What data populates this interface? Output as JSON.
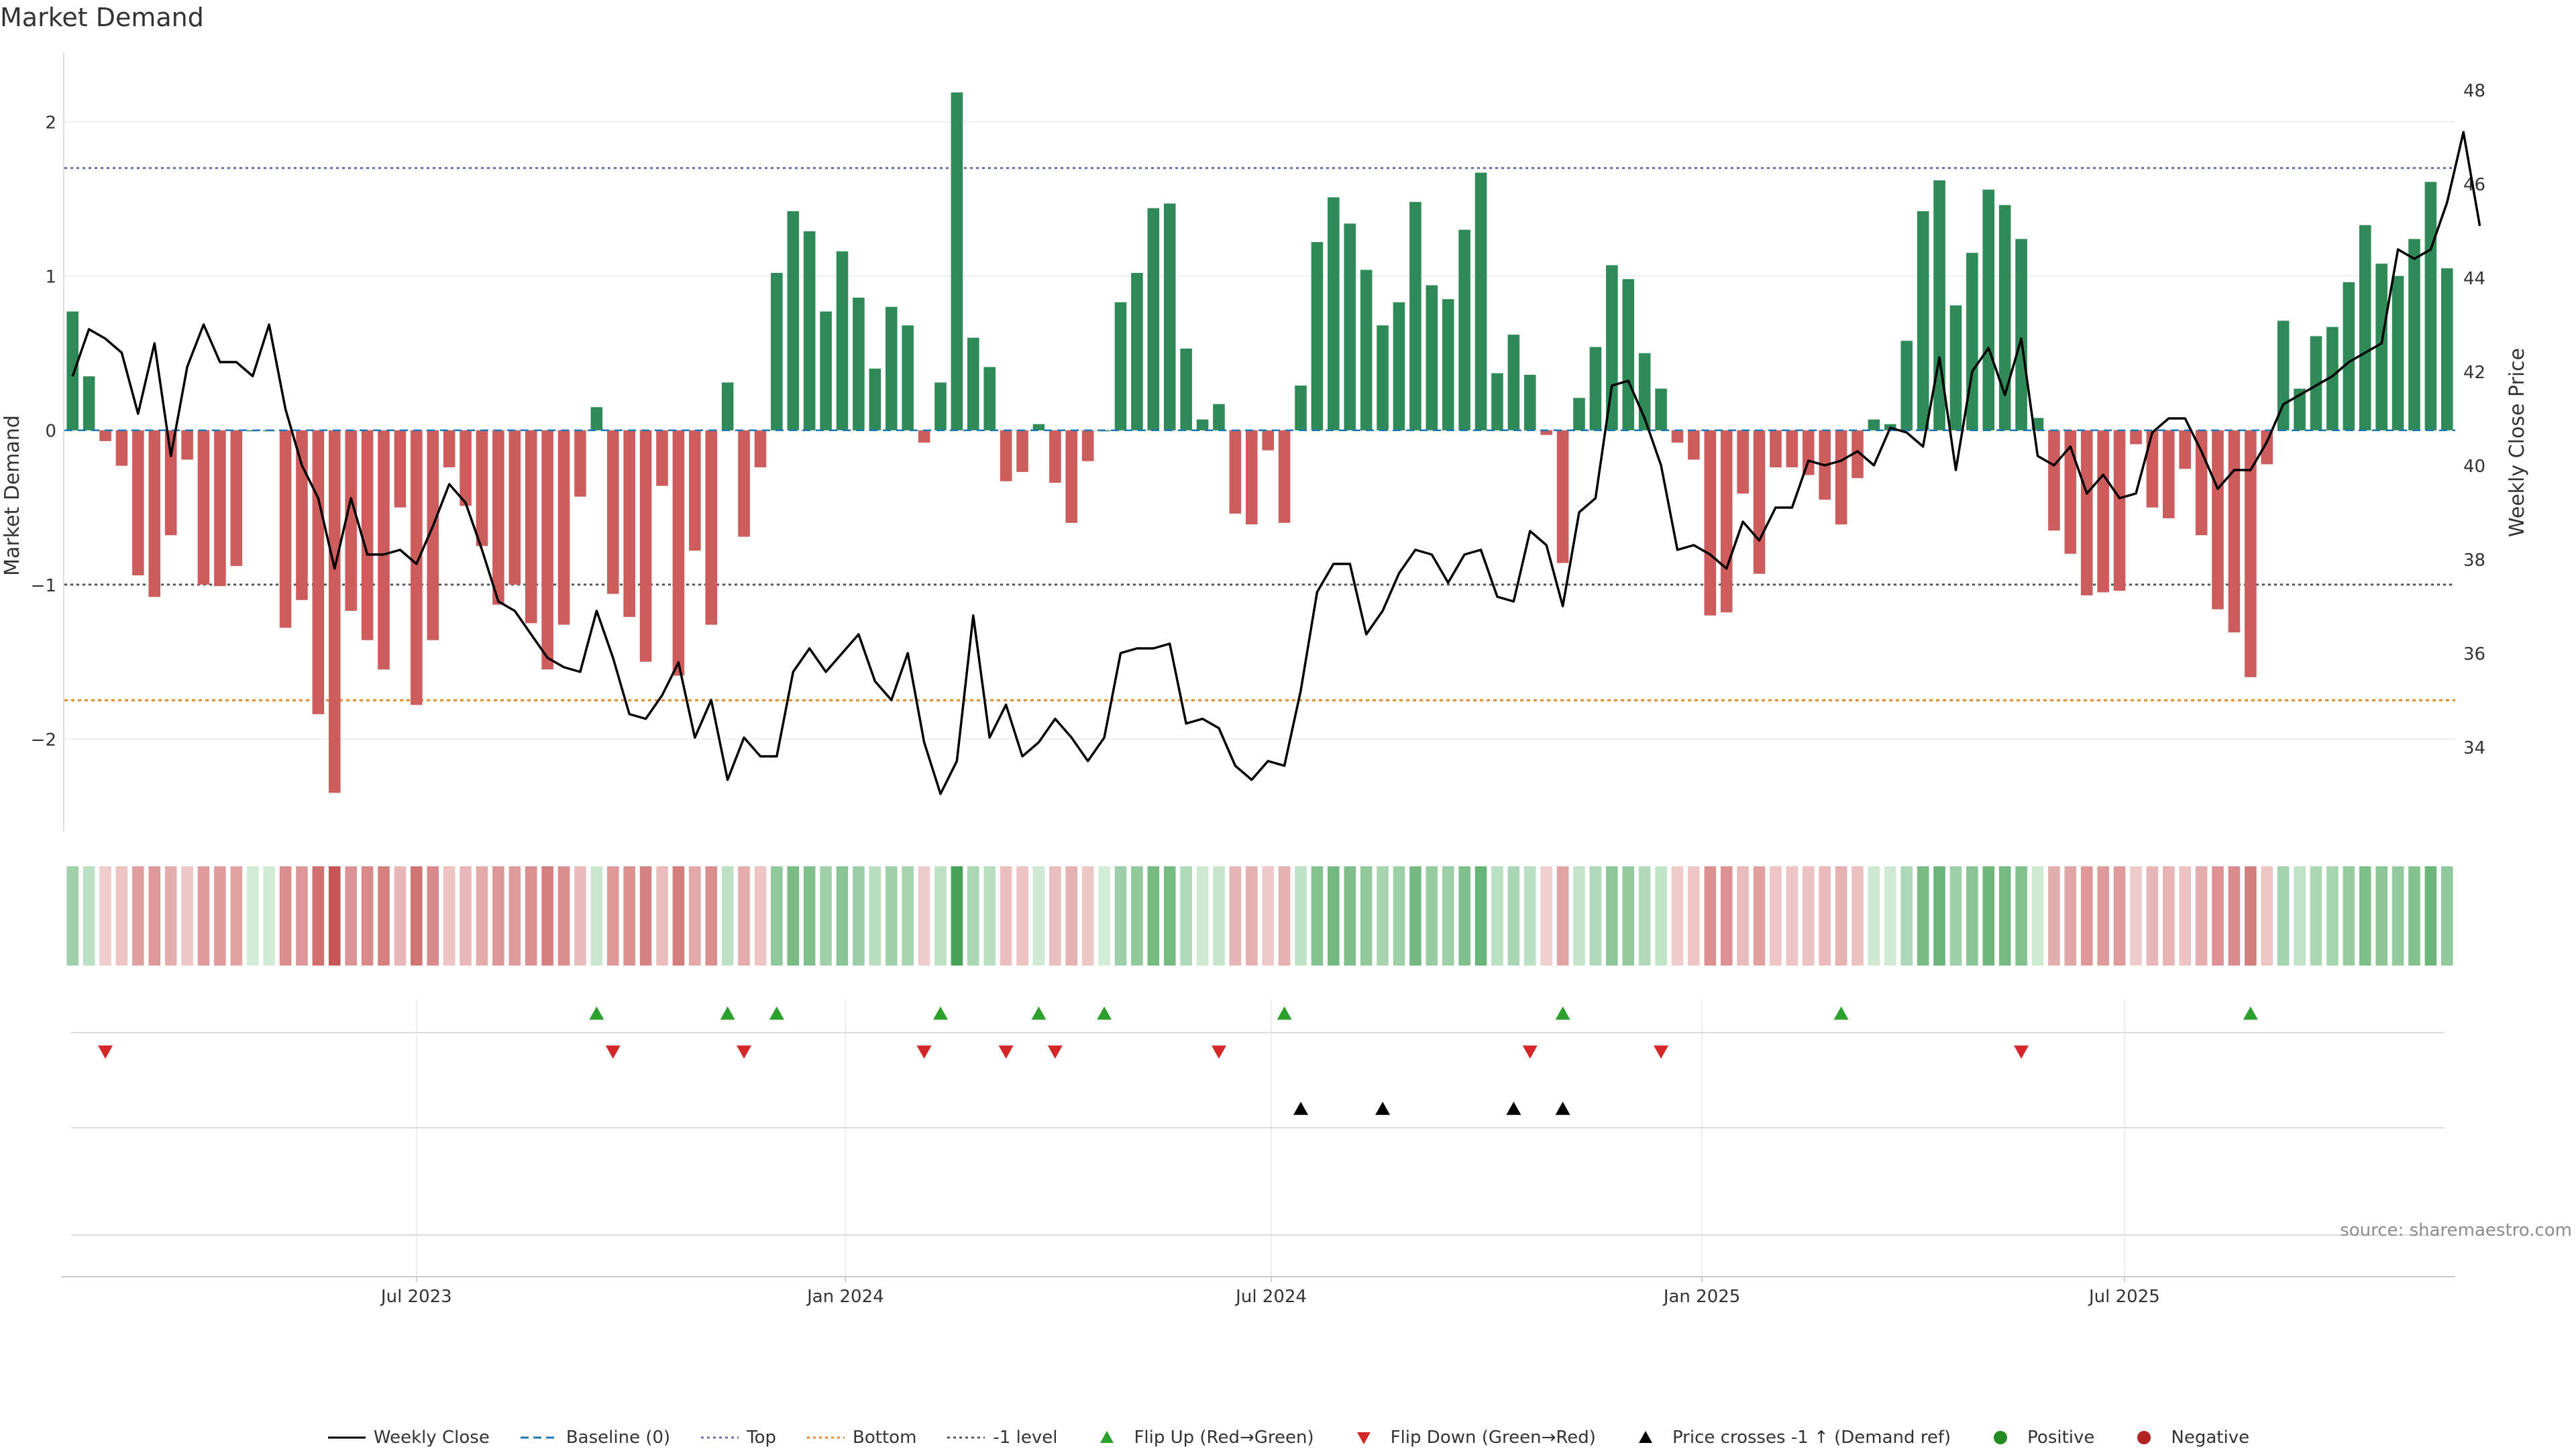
{
  "title": "Market Demand",
  "source": "source: sharemaestro.com",
  "colors": {
    "positive_bar": "#2e8b57",
    "negative_bar": "#cd5c5c",
    "price_line": "#000000",
    "top_line": "#6f6fb0",
    "bottom_line": "#e08a2a",
    "minus_one_line": "#555555",
    "baseline": "#1f77b4",
    "flip_up": "#2ca02c",
    "flip_down": "#d62728",
    "cross_marker": "#000000",
    "positive_dot": "#228b22",
    "negative_dot": "#b22222"
  },
  "legend": [
    {
      "label": "Weekly Close",
      "icon": "line-solid-icon",
      "color": "#000000"
    },
    {
      "label": "Baseline (0)",
      "icon": "line-dashed-icon",
      "color": "#1f77b4"
    },
    {
      "label": "Top",
      "icon": "line-dotted-icon",
      "color": "#6f6fb0"
    },
    {
      "label": "Bottom",
      "icon": "line-dotted-icon",
      "color": "#e08a2a"
    },
    {
      "label": "-1 level",
      "icon": "line-dotted-icon",
      "color": "#555555"
    },
    {
      "label": "Flip Up (Red→Green)",
      "icon": "triangle-up-icon",
      "color": "#2ca02c"
    },
    {
      "label": "Flip Down (Green→Red)",
      "icon": "triangle-down-icon",
      "color": "#d62728"
    },
    {
      "label": "Price crosses -1 ↑ (Demand ref)",
      "icon": "triangle-up-icon",
      "color": "#000000"
    },
    {
      "label": "Positive",
      "icon": "circle-icon",
      "color": "#228b22"
    },
    {
      "label": "Negative",
      "icon": "circle-icon",
      "color": "#b22222"
    }
  ],
  "chart_data": {
    "type": "bar+line",
    "title": "Market Demand",
    "ylabel_left": "Market Demand",
    "ylabel_right": "Weekly Close Price",
    "ylim_left": [
      -2.6,
      2.45
    ],
    "ylim_right": [
      32.2,
      48.8
    ],
    "yticks_left": [
      2,
      1,
      0,
      -1,
      -2
    ],
    "ytick_labels_left": [
      "2",
      "1",
      "0",
      "−1",
      "−2"
    ],
    "yticks_right": [
      48,
      46,
      44,
      42,
      40,
      38,
      36,
      34
    ],
    "reference_lines": {
      "top": 1.7,
      "bottom": -1.75,
      "minus_one": -1.0,
      "baseline": 0
    },
    "x_ticks": [
      {
        "label": "Jul 2023",
        "index": 21.5
      },
      {
        "label": "Jan 2024",
        "index": 47.7
      },
      {
        "label": "Jul 2024",
        "index": 73.7
      },
      {
        "label": "Jan 2025",
        "index": 100.0
      },
      {
        "label": "Jul 2025",
        "index": 125.8
      }
    ],
    "demand": [
      0.77,
      0.35,
      -0.07,
      -0.23,
      -0.94,
      -1.08,
      -0.68,
      -0.19,
      -1.0,
      -1.01,
      -0.88,
      0.0,
      0.0,
      -1.28,
      -1.1,
      -1.84,
      -2.35,
      -1.17,
      -1.36,
      -1.55,
      -0.5,
      -1.78,
      -1.36,
      -0.24,
      -0.49,
      -0.75,
      -1.13,
      -1.0,
      -1.25,
      -1.55,
      -1.26,
      -0.43,
      0.15,
      -1.06,
      -1.21,
      -1.5,
      -0.36,
      -1.59,
      -0.78,
      -1.26,
      0.31,
      -0.69,
      -0.24,
      1.02,
      1.42,
      1.29,
      0.77,
      1.16,
      0.86,
      0.4,
      0.8,
      0.68,
      -0.08,
      0.31,
      2.19,
      0.6,
      0.41,
      -0.33,
      -0.27,
      0.04,
      -0.34,
      -0.6,
      -0.2,
      0.0,
      0.83,
      1.02,
      1.44,
      1.47,
      0.53,
      0.07,
      0.17,
      -0.54,
      -0.61,
      -0.13,
      -0.6,
      0.29,
      1.22,
      1.51,
      1.34,
      1.04,
      0.68,
      0.83,
      1.48,
      0.94,
      0.85,
      1.3,
      1.67,
      0.37,
      0.62,
      0.36,
      -0.03,
      -0.86,
      0.21,
      0.54,
      1.07,
      0.98,
      0.5,
      0.27,
      -0.08,
      -0.19,
      -1.2,
      -1.18,
      -0.41,
      -0.93,
      -0.24,
      -0.24,
      -0.29,
      -0.45,
      -0.61,
      -0.31,
      0.07,
      0.04,
      0.58,
      1.42,
      1.62,
      0.81,
      1.15,
      1.56,
      1.46,
      1.24,
      0.08,
      -0.65,
      -0.8,
      -1.07,
      -1.05,
      -1.04,
      -0.09,
      -0.5,
      -0.57,
      -0.25,
      -0.68,
      -1.16,
      -1.31,
      -1.6,
      -0.22,
      0.71,
      0.27,
      0.61,
      0.67,
      0.96,
      1.33,
      1.08,
      1.0,
      1.24,
      1.61,
      1.05
    ],
    "price": [
      41.9,
      42.9,
      42.7,
      42.4,
      41.1,
      42.6,
      40.2,
      42.1,
      43.0,
      42.2,
      42.2,
      41.9,
      43.0,
      41.2,
      40.0,
      39.3,
      37.8,
      39.3,
      38.1,
      38.1,
      38.2,
      37.9,
      38.7,
      39.6,
      39.2,
      38.2,
      37.1,
      36.9,
      36.4,
      35.9,
      35.7,
      35.6,
      36.9,
      35.9,
      34.7,
      34.6,
      35.1,
      35.8,
      34.2,
      35.0,
      33.3,
      34.2,
      33.8,
      33.8,
      35.6,
      36.1,
      35.6,
      36.0,
      36.4,
      35.4,
      35.0,
      36.0,
      34.1,
      33.0,
      33.7,
      36.8,
      34.2,
      34.9,
      33.8,
      34.1,
      34.6,
      34.2,
      33.7,
      34.2,
      36.0,
      36.1,
      36.1,
      36.2,
      34.5,
      34.6,
      34.4,
      33.6,
      33.3,
      33.7,
      33.6,
      35.2,
      37.3,
      37.9,
      37.9,
      36.4,
      36.9,
      37.7,
      38.2,
      38.1,
      37.5,
      38.1,
      38.2,
      37.2,
      37.1,
      38.6,
      38.3,
      37.0,
      39.0,
      39.3,
      41.7,
      41.8,
      41.0,
      40.0,
      38.2,
      38.3,
      38.1,
      37.8,
      38.8,
      38.4,
      39.1,
      39.1,
      40.1,
      40.0,
      40.1,
      40.3,
      40.0,
      40.8,
      40.7,
      40.4,
      42.3,
      39.9,
      42.0,
      42.5,
      41.5,
      42.7,
      40.2,
      40.0,
      40.4,
      39.4,
      39.8,
      39.3,
      39.4,
      40.7,
      41.0,
      41.0,
      40.3,
      39.5,
      39.9,
      39.9,
      40.5,
      41.3,
      41.5,
      41.7,
      41.9,
      42.2,
      42.4,
      42.6,
      44.6,
      44.4,
      44.6,
      45.6,
      47.1,
      45.1
    ],
    "flip_up_indices": [
      32,
      40,
      43,
      53,
      59,
      63,
      74,
      91,
      108,
      133
    ],
    "flip_down_indices": [
      2,
      33,
      41,
      52,
      57,
      60,
      70,
      89,
      97,
      119
    ],
    "price_cross_indices": [
      75,
      80,
      88,
      91
    ]
  }
}
